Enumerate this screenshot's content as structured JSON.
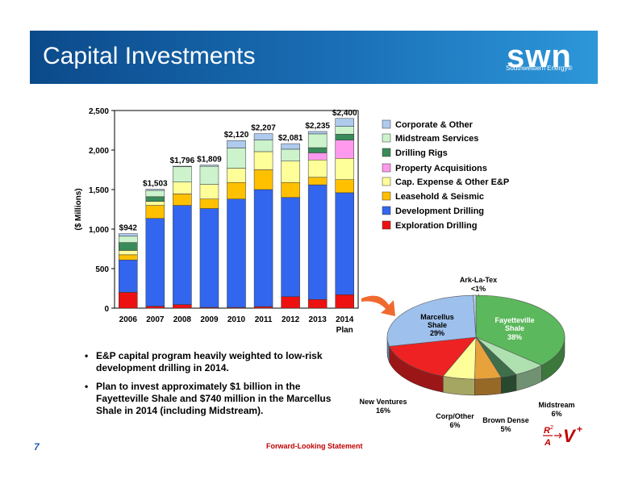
{
  "header": {
    "title": "Capital Investments"
  },
  "logo": {
    "name": "swn",
    "tagline": "Southwestern Energy®"
  },
  "colors": {
    "corporate": "#aecbee",
    "midstream": "#ccf3cc",
    "rigs": "#3a8b5a",
    "property": "#ff99ee",
    "capex": "#ffff99",
    "leasehold": "#ffc000",
    "development": "#3366ee",
    "exploration": "#ee1111"
  },
  "chart_data": [
    {
      "type": "bar",
      "stacked": true,
      "ylabel": "($ Millions)",
      "ylim": [
        0,
        2500
      ],
      "yticks": [
        "0",
        "500",
        "1,000",
        "1,500",
        "2,000",
        "2,500"
      ],
      "categories": [
        "2006",
        "2007",
        "2008",
        "2009",
        "2010",
        "2011",
        "2012",
        "2013",
        "2014"
      ],
      "category_sublabels": [
        "",
        "",
        "",
        "",
        "",
        "",
        "",
        "",
        "Plan"
      ],
      "totals": [
        "$942",
        "$1,503",
        "$1,796",
        "$1,809",
        "$2,120",
        "$2,207",
        "$2,081",
        "$2,235",
        "$2,400"
      ],
      "legend_position": "right",
      "series": [
        {
          "name": "Exploration Drilling",
          "key": "exploration",
          "values": [
            200,
            25,
            45,
            10,
            10,
            20,
            145,
            110,
            170
          ]
        },
        {
          "name": "Development Drilling",
          "key": "development",
          "values": [
            410,
            1110,
            1255,
            1250,
            1370,
            1480,
            1255,
            1450,
            1290
          ]
        },
        {
          "name": "Leasehold & Seismic",
          "key": "leasehold",
          "values": [
            65,
            165,
            145,
            120,
            210,
            250,
            190,
            95,
            165
          ]
        },
        {
          "name": "Cap. Expense & Other E&P",
          "key": "capex",
          "values": [
            55,
            50,
            150,
            185,
            180,
            230,
            270,
            220,
            270
          ]
        },
        {
          "name": "Property Acquisitions",
          "key": "property",
          "values": [
            0,
            0,
            0,
            0,
            0,
            0,
            0,
            90,
            230
          ]
        },
        {
          "name": "Drilling Rigs",
          "key": "rigs",
          "values": [
            100,
            60,
            0,
            0,
            0,
            0,
            0,
            65,
            75
          ]
        },
        {
          "name": "Midstream Services",
          "key": "midstream",
          "values": [
            80,
            80,
            195,
            230,
            255,
            147,
            151,
            175,
            100
          ]
        },
        {
          "name": "Corporate & Other",
          "key": "corporate",
          "values": [
            32,
            13,
            6,
            14,
            95,
            80,
            70,
            30,
            100
          ]
        }
      ],
      "legend_order": [
        "corporate",
        "midstream",
        "rigs",
        "property",
        "capex",
        "leasehold",
        "development",
        "exploration"
      ]
    },
    {
      "type": "pie",
      "slices": [
        {
          "label": "Fayetteville Shale",
          "value_label": "38%",
          "value": 38,
          "color": "#5cb85c"
        },
        {
          "label": "Midstream",
          "value_label": "6%",
          "value": 6,
          "color": "#aee0b0"
        },
        {
          "label": "",
          "value_label": "",
          "value": 3,
          "color": "#3f6f4a"
        },
        {
          "label": "Brown Dense",
          "value_label": "5%",
          "value": 5,
          "color": "#e8a23c"
        },
        {
          "label": "Corp/Other",
          "value_label": "6%",
          "value": 6,
          "color": "#ffff99"
        },
        {
          "label": "New Ventures",
          "value_label": "16%",
          "value": 16,
          "color": "#ee2222"
        },
        {
          "label": "Marcellus Shale",
          "value_label": "29%",
          "value": 29,
          "color": "#9ec0ec"
        },
        {
          "label": "Ark-La-Tex",
          "value_label": "<1%",
          "value": 0.5,
          "color": "#c0d8f4"
        }
      ]
    }
  ],
  "bullets": [
    "E&P capital program heavily weighted to low-risk development drilling in 2014.",
    "Plan to invest approximately $1 billion in the Fayetteville Shale and $740 million in the Marcellus Shale in 2014 (including Midstream)."
  ],
  "footer": {
    "page_number": "7",
    "note": "Forward-Looking Statement",
    "stamp_text": "R² A → V+"
  }
}
